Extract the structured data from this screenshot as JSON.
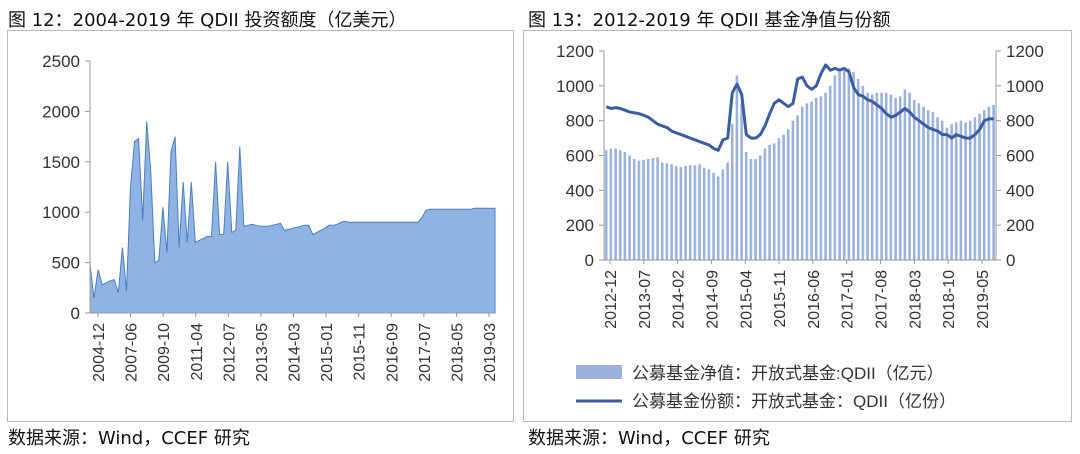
{
  "figures": [
    {
      "title": "图 12：2004-2019 年 QDII 投资额度（亿美元）",
      "source": "数据来源：Wind，CCEF 研究"
    },
    {
      "title": "图 13：2012-2019 年 QDII 基金净值与份额",
      "source": "数据来源：Wind，CCEF 研究"
    }
  ],
  "colors": {
    "area_fill": "#8fb4e3",
    "area_line": "#4a7fc1",
    "bar": "#9db1de",
    "line": "#3b5ea3",
    "axis": "#999999"
  },
  "chart_data": [
    {
      "type": "area",
      "title": "",
      "xlabel": "",
      "ylabel": "",
      "ylim": [
        0,
        2500
      ],
      "yticks": [
        0,
        500,
        1000,
        1500,
        2000,
        2500
      ],
      "x_tick_labels": [
        "2004-12",
        "2007-06",
        "2009-10",
        "2011-04",
        "2012-07",
        "2013-05",
        "2014-03",
        "2015-01",
        "2015-11",
        "2016-09",
        "2017-07",
        "2018-05",
        "2019-03"
      ],
      "grid": false,
      "series": [
        {
          "x_index_range": [
            0,
            100
          ],
          "points": [
            [
              0,
              480
            ],
            [
              1,
              150
            ],
            [
              2,
              430
            ],
            [
              3,
              280
            ],
            [
              4,
              300
            ],
            [
              5,
              320
            ],
            [
              6,
              330
            ],
            [
              7,
              200
            ],
            [
              8,
              650
            ],
            [
              9,
              220
            ],
            [
              10,
              1250
            ],
            [
              11,
              1700
            ],
            [
              12,
              1730
            ],
            [
              13,
              920
            ],
            [
              14,
              1900
            ],
            [
              15,
              1400
            ],
            [
              16,
              500
            ],
            [
              17,
              520
            ],
            [
              18,
              1050
            ],
            [
              19,
              600
            ],
            [
              20,
              1600
            ],
            [
              21,
              1750
            ],
            [
              22,
              650
            ],
            [
              23,
              1300
            ],
            [
              24,
              700
            ],
            [
              25,
              1300
            ],
            [
              26,
              700
            ],
            [
              27,
              720
            ],
            [
              28,
              740
            ],
            [
              29,
              760
            ],
            [
              30,
              760
            ],
            [
              31,
              1500
            ],
            [
              32,
              780
            ],
            [
              33,
              780
            ],
            [
              34,
              1500
            ],
            [
              35,
              800
            ],
            [
              36,
              820
            ],
            [
              37,
              1650
            ],
            [
              38,
              860
            ],
            [
              39,
              870
            ],
            [
              40,
              880
            ],
            [
              41,
              870
            ],
            [
              42,
              860
            ],
            [
              43,
              860
            ],
            [
              44,
              860
            ],
            [
              45,
              870
            ],
            [
              46,
              880
            ],
            [
              47,
              890
            ],
            [
              48,
              820
            ],
            [
              49,
              830
            ],
            [
              50,
              840
            ],
            [
              51,
              850
            ],
            [
              52,
              860
            ],
            [
              53,
              870
            ],
            [
              54,
              870
            ],
            [
              55,
              780
            ],
            [
              56,
              800
            ],
            [
              57,
              820
            ],
            [
              58,
              840
            ],
            [
              59,
              870
            ],
            [
              60,
              870
            ],
            [
              61,
              880
            ],
            [
              62,
              900
            ],
            [
              63,
              910
            ],
            [
              64,
              900
            ],
            [
              65,
              900
            ],
            [
              66,
              900
            ],
            [
              67,
              900
            ],
            [
              68,
              900
            ],
            [
              69,
              900
            ],
            [
              70,
              900
            ],
            [
              71,
              900
            ],
            [
              72,
              900
            ],
            [
              73,
              900
            ],
            [
              74,
              900
            ],
            [
              75,
              900
            ],
            [
              76,
              900
            ],
            [
              77,
              900
            ],
            [
              78,
              900
            ],
            [
              79,
              900
            ],
            [
              80,
              900
            ],
            [
              81,
              900
            ],
            [
              82,
              950
            ],
            [
              83,
              1020
            ],
            [
              84,
              1030
            ],
            [
              85,
              1030
            ],
            [
              86,
              1030
            ],
            [
              87,
              1030
            ],
            [
              88,
              1030
            ],
            [
              89,
              1030
            ],
            [
              90,
              1030
            ],
            [
              91,
              1030
            ],
            [
              92,
              1030
            ],
            [
              93,
              1030
            ],
            [
              94,
              1030
            ],
            [
              95,
              1040
            ],
            [
              96,
              1040
            ],
            [
              97,
              1040
            ],
            [
              98,
              1040
            ],
            [
              99,
              1040
            ],
            [
              100,
              1040
            ]
          ]
        }
      ]
    },
    {
      "type": "bar+line",
      "title": "",
      "ylim_left": [
        0,
        1200
      ],
      "ylim_right": [
        0,
        1200
      ],
      "yticks": [
        0,
        200,
        400,
        600,
        800,
        1000,
        1200
      ],
      "x_tick_labels": [
        "2012-12",
        "2013-07",
        "2014-02",
        "2014-09",
        "2015-04",
        "2015-11",
        "2016-06",
        "2017-01",
        "2017-08",
        "2018-03",
        "2018-10",
        "2019-05"
      ],
      "legend_position": "bottom",
      "series": [
        {
          "name": "公募基金净值：开放式基金:QDII（亿元）",
          "kind": "bar",
          "values": [
            630,
            640,
            640,
            630,
            620,
            600,
            580,
            570,
            575,
            580,
            585,
            590,
            560,
            555,
            550,
            540,
            535,
            540,
            545,
            545,
            550,
            530,
            520,
            500,
            480,
            520,
            560,
            780,
            1060,
            900,
            620,
            580,
            580,
            600,
            640,
            660,
            670,
            700,
            720,
            750,
            800,
            830,
            880,
            900,
            910,
            930,
            940,
            960,
            1000,
            1060,
            1080,
            1090,
            1100,
            1080,
            1040,
            1000,
            960,
            950,
            960,
            960,
            960,
            950,
            930,
            940,
            980,
            960,
            920,
            900,
            880,
            860,
            850,
            820,
            800,
            760,
            780,
            790,
            800,
            790,
            800,
            820,
            840,
            860,
            880,
            890
          ]
        },
        {
          "name": "公募基金份额：开放式基金：QDII（亿份）",
          "kind": "line",
          "values": [
            880,
            870,
            875,
            870,
            860,
            850,
            845,
            840,
            830,
            820,
            800,
            780,
            770,
            760,
            740,
            730,
            720,
            710,
            700,
            690,
            680,
            670,
            660,
            640,
            630,
            690,
            700,
            960,
            1010,
            950,
            720,
            700,
            700,
            720,
            770,
            840,
            900,
            920,
            900,
            880,
            900,
            1040,
            1050,
            1000,
            980,
            1000,
            1070,
            1120,
            1090,
            1100,
            1090,
            1100,
            1080,
            990,
            950,
            940,
            920,
            910,
            890,
            870,
            840,
            820,
            830,
            850,
            870,
            850,
            820,
            800,
            780,
            760,
            750,
            740,
            720,
            720,
            700,
            720,
            710,
            700,
            700,
            720,
            750,
            800,
            810,
            810
          ]
        }
      ]
    }
  ]
}
